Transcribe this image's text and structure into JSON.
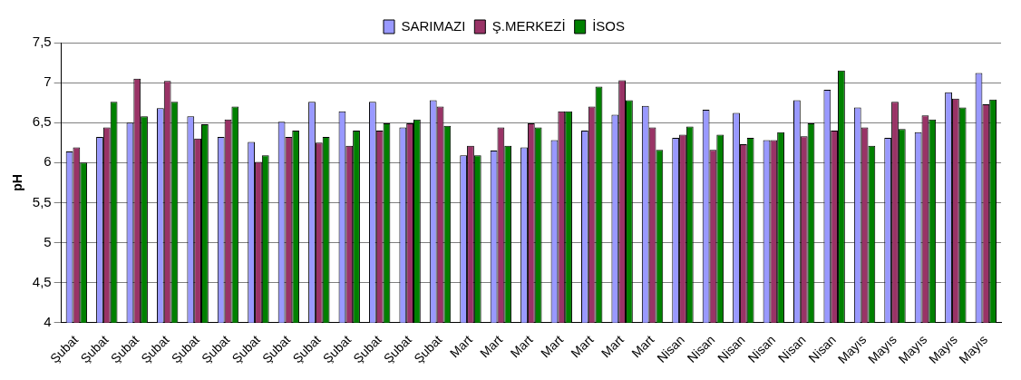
{
  "chart_data": {
    "type": "bar",
    "ylabel": "pH",
    "categories": [
      "Şubat",
      "Şubat",
      "Şubat",
      "Şubat",
      "Şubat",
      "Şubat",
      "Şubat",
      "Şubat",
      "Şubat",
      "Şubat",
      "Şubat",
      "Şubat",
      "Şubat",
      "Mart",
      "Mart",
      "Mart",
      "Mart",
      "Mart",
      "Mart",
      "Mart",
      "Nisan",
      "Nisan",
      "Nisan",
      "Nisan",
      "Nisan",
      "Nisan",
      "Mayıs",
      "Mayıs",
      "Mayıs",
      "Mayıs",
      "Mayıs"
    ],
    "series": [
      {
        "name": "SARIMAZI",
        "color": "#9999ff",
        "values": [
          6.14,
          6.32,
          6.5,
          6.68,
          6.58,
          6.32,
          6.26,
          6.51,
          6.76,
          6.64,
          6.76,
          6.44,
          6.78,
          6.09,
          6.15,
          6.19,
          6.28,
          6.4,
          6.6,
          6.71,
          6.31,
          6.66,
          6.62,
          6.28,
          6.78,
          6.91,
          6.69,
          6.31,
          6.38,
          6.88,
          7.12
        ]
      },
      {
        "name": "Ş.MERKEZİ",
        "color": "#993366",
        "values": [
          6.19,
          6.44,
          7.05,
          7.02,
          6.3,
          6.54,
          6.01,
          6.32,
          6.25,
          6.21,
          6.4,
          6.49,
          6.7,
          6.21,
          6.44,
          6.49,
          6.64,
          6.7,
          7.03,
          6.44,
          6.35,
          6.16,
          6.23,
          6.28,
          6.33,
          6.4,
          6.44,
          6.76,
          6.59,
          6.8,
          6.73
        ]
      },
      {
        "name": "İSOS",
        "color": "#008000",
        "values": [
          6.0,
          6.76,
          6.58,
          6.76,
          6.48,
          6.7,
          6.09,
          6.4,
          6.32,
          6.4,
          6.49,
          6.54,
          6.46,
          6.09,
          6.21,
          6.44,
          6.64,
          6.95,
          6.78,
          6.16,
          6.45,
          6.35,
          6.31,
          6.38,
          6.49,
          7.15,
          6.21,
          6.42,
          6.54,
          6.69,
          6.79
        ]
      }
    ],
    "ylim": [
      4,
      7.5
    ],
    "yticks": [
      {
        "value": 4,
        "label": "4"
      },
      {
        "value": 4.5,
        "label": "4,5"
      },
      {
        "value": 5,
        "label": "5"
      },
      {
        "value": 5.5,
        "label": "5,5"
      },
      {
        "value": 6,
        "label": "6"
      },
      {
        "value": 6.5,
        "label": "6,5"
      },
      {
        "value": 7,
        "label": "7"
      },
      {
        "value": 7.5,
        "label": "7,5"
      }
    ],
    "grid": "y",
    "legend": "top"
  }
}
